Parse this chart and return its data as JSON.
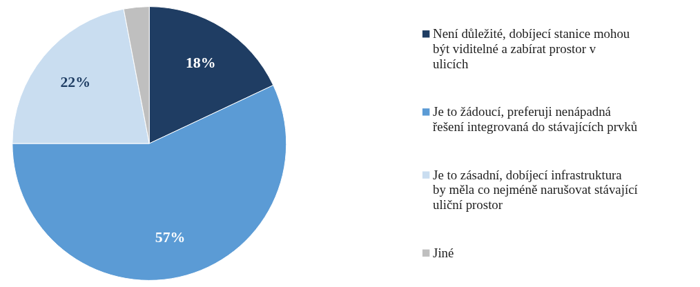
{
  "chart_data": {
    "type": "pie",
    "categories": [
      "Není důležité, dobíjecí stanice mohou být viditelné a zabírat prostor v ulicích",
      "Je to žádoucí, preferuji nenápadná řešení integrovaná do stávajících prvků",
      "Je to zásadní, dobíjecí infrastruktura by měla co nejméně narušovat stávající uliční prostor",
      "Jiné"
    ],
    "values": [
      18,
      57,
      22,
      3
    ],
    "value_labels": [
      "18%",
      "57%",
      "22%",
      null
    ],
    "colors": [
      "#1f3d63",
      "#5b9bd5",
      "#c9ddf0",
      "#bfbfbf"
    ],
    "legend": "right"
  }
}
